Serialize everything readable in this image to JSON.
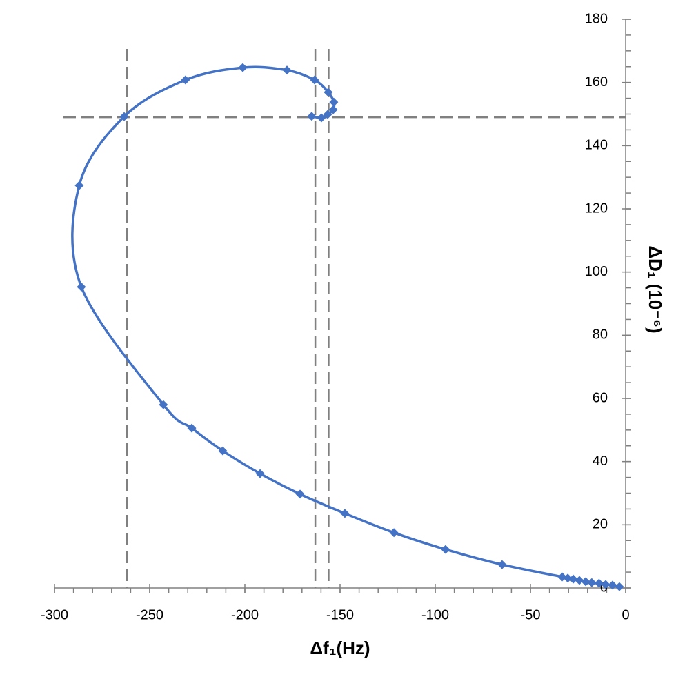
{
  "chart_data": {
    "type": "scatter",
    "x_label": "Δf₁(Hz)",
    "y_label": "ΔD₁ (10⁻⁶)",
    "color": "#4472c4",
    "smooth": true,
    "xlim": [
      -300,
      0
    ],
    "xticks": [
      -300,
      -250,
      -200,
      -150,
      -100,
      -50,
      0
    ],
    "x_minor_step": 10,
    "ylim": [
      0,
      180
    ],
    "yticks": [
      0,
      20,
      40,
      60,
      80,
      100,
      120,
      140,
      160,
      180
    ],
    "y_minor_step": 5,
    "reference_lines": {
      "x": [
        -262,
        -163,
        -156
      ],
      "y": [
        149
      ]
    },
    "x": [
      -3.3,
      -6.9,
      -10.5,
      -14,
      -17.8,
      -21,
      -24.3,
      -27.5,
      -30.4,
      -33.3,
      -64.9,
      -94.6,
      -121.7,
      -147.5,
      -171,
      -192,
      -211.6,
      -227.9,
      -242.8,
      -285.9,
      -287,
      -263.4,
      -231.2,
      -201.1,
      -177.9,
      -163.4,
      -156.2,
      -153.3,
      -153.6,
      -156.5,
      -159.8,
      -164.9
    ],
    "values": [
      0.4,
      0.9,
      1.1,
      1.5,
      1.7,
      2.0,
      2.4,
      2.8,
      3.1,
      3.5,
      7.4,
      12.2,
      17.5,
      23.6,
      29.7,
      36.2,
      43.4,
      50.6,
      58.0,
      95.3,
      127.4,
      149.2,
      160.8,
      164.7,
      163.9,
      160.8,
      156.9,
      153.8,
      151.4,
      149.9,
      148.8,
      149.3
    ]
  }
}
